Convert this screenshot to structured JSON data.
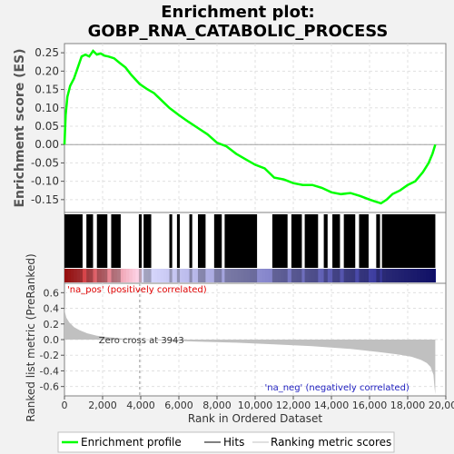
{
  "chart_data": {
    "type": "line",
    "title": "Enrichment plot:",
    "subtitle": "GOBP_RNA_CATABOLIC_PROCESS",
    "colors": {
      "es_line": "#00ff00",
      "hits": "#000000",
      "metric": "#c0c0c0",
      "pos_label": "#e00000",
      "neg_label": "#2020c0",
      "background": "#f2f2f2",
      "plot_bg": "#ffffff"
    },
    "top_panel": {
      "ylabel": "Enrichment score (ES)",
      "ylim": [
        -0.185,
        0.275
      ],
      "yticks": [
        "0.25",
        "0.20",
        "0.15",
        "0.10",
        "0.05",
        "0.00",
        "-0.05",
        "-0.10",
        "-0.15"
      ],
      "ytick_values": [
        0.25,
        0.2,
        0.15,
        0.1,
        0.05,
        0.0,
        -0.05,
        -0.1,
        -0.15
      ],
      "grid": true,
      "es_curve": {
        "x": [
          0,
          60,
          150,
          300,
          500,
          700,
          900,
          1100,
          1300,
          1500,
          1700,
          1900,
          2100,
          2300,
          2600,
          2900,
          3200,
          3500,
          3943,
          4300,
          4700,
          5100,
          5500,
          6000,
          6500,
          7000,
          7500,
          8000,
          8500,
          9000,
          9500,
          10000,
          10500,
          11000,
          11500,
          12000,
          12500,
          13000,
          13500,
          14000,
          14500,
          15000,
          15500,
          16000,
          16300,
          16600,
          16900,
          17200,
          17600,
          18000,
          18400,
          18800,
          19100,
          19300,
          19450
        ],
        "y": [
          0.0,
          0.08,
          0.13,
          0.16,
          0.18,
          0.21,
          0.24,
          0.245,
          0.24,
          0.255,
          0.245,
          0.248,
          0.242,
          0.24,
          0.235,
          0.222,
          0.21,
          0.19,
          0.165,
          0.152,
          0.14,
          0.12,
          0.1,
          0.08,
          0.062,
          0.045,
          0.028,
          0.005,
          -0.005,
          -0.025,
          -0.04,
          -0.055,
          -0.065,
          -0.09,
          -0.095,
          -0.105,
          -0.11,
          -0.11,
          -0.118,
          -0.13,
          -0.135,
          -0.132,
          -0.14,
          -0.15,
          -0.155,
          -0.16,
          -0.15,
          -0.135,
          -0.125,
          -0.11,
          -0.1,
          -0.075,
          -0.05,
          -0.025,
          0.0
        ]
      }
    },
    "hits_panel": {
      "hit_ranges": [
        [
          0,
          950
        ],
        [
          1150,
          1500
        ],
        [
          1700,
          2250
        ],
        [
          2450,
          2950
        ],
        [
          3900,
          4050
        ],
        [
          4150,
          4550
        ],
        [
          5500,
          5650
        ],
        [
          5900,
          6050
        ],
        [
          6550,
          6700
        ],
        [
          7000,
          7400
        ],
        [
          7850,
          8250
        ],
        [
          8400,
          10100
        ],
        [
          10900,
          11700
        ],
        [
          11900,
          12450
        ],
        [
          12600,
          13300
        ],
        [
          13600,
          13800
        ],
        [
          14050,
          14450
        ],
        [
          14650,
          15250
        ],
        [
          15450,
          15950
        ],
        [
          16350,
          16550
        ],
        [
          16650,
          19450
        ]
      ]
    },
    "bottom_panel": {
      "ylabel": "Ranked list metric (PreRanked)",
      "xlabel": "Rank in Ordered Dataset",
      "ylim": [
        -0.72,
        0.72
      ],
      "yticks": [
        "0.6",
        "0.4",
        "0.2",
        "0.0",
        "-0.2",
        "-0.4",
        "-0.6"
      ],
      "ytick_values": [
        0.6,
        0.4,
        0.2,
        0.0,
        -0.2,
        -0.4,
        -0.6
      ],
      "xlim": [
        0,
        20000
      ],
      "xticks": [
        "0",
        "2,000",
        "4,000",
        "6,000",
        "8,000",
        "10,000",
        "12,000",
        "14,000",
        "16,000",
        "18,000",
        "20,000"
      ],
      "xtick_values": [
        0,
        2000,
        4000,
        6000,
        8000,
        10000,
        12000,
        14000,
        16000,
        18000,
        20000
      ],
      "zero_cross": 3943,
      "zero_cross_label": "Zero cross at 3943",
      "pos_label": "'na_pos' (positively correlated)",
      "neg_label": "'na_neg' (negatively correlated)",
      "metric_curve": {
        "x": [
          0,
          30,
          100,
          250,
          500,
          800,
          1200,
          1700,
          2300,
          3000,
          3943,
          5000,
          7000,
          9000,
          11000,
          13000,
          15000,
          16500,
          17500,
          18200,
          18700,
          19000,
          19200,
          19350,
          19400,
          19450
        ],
        "y": [
          0.45,
          0.35,
          0.28,
          0.22,
          0.16,
          0.12,
          0.08,
          0.05,
          0.03,
          0.015,
          0.0,
          -0.01,
          -0.025,
          -0.04,
          -0.06,
          -0.085,
          -0.12,
          -0.16,
          -0.19,
          -0.22,
          -0.26,
          -0.3,
          -0.35,
          -0.45,
          -0.6,
          -0.7
        ]
      },
      "total_ranks": 19450
    },
    "legend": {
      "items": [
        "Enrichment profile",
        "Hits",
        "Ranking metric scores"
      ]
    }
  }
}
